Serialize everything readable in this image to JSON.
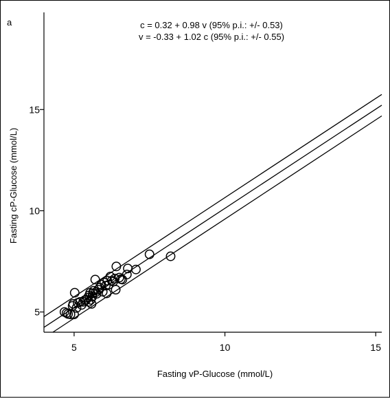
{
  "panel_label": "a",
  "chart_data": {
    "type": "scatter",
    "title": "",
    "xlabel": "Fasting vP-Glucose (mmol/L)",
    "ylabel": "Fasting cP-Glucose (mmol/L)",
    "xlim": [
      4.0,
      15.2
    ],
    "ylim": [
      4.0,
      19.8
    ],
    "xticks": [
      5,
      10,
      15
    ],
    "yticks": [
      5,
      10,
      15
    ],
    "grid": false,
    "annotations": [
      "c = 0.32 + 0.98 v (95% p.i.: +/- 0.53)",
      "v = -0.33 + 1.02 c (95% p.i.: +/- 0.55)"
    ],
    "regression": {
      "intercept": 0.32,
      "slope": 0.98,
      "pi_halfwidth": 0.53
    },
    "series": [
      {
        "points": [
          [
            4.68,
            5.0
          ],
          [
            4.75,
            4.95
          ],
          [
            4.8,
            4.9
          ],
          [
            4.88,
            4.88
          ],
          [
            4.95,
            5.3
          ],
          [
            4.97,
            5.4
          ],
          [
            5.0,
            4.88
          ],
          [
            5.02,
            5.95
          ],
          [
            5.08,
            5.2
          ],
          [
            5.12,
            5.45
          ],
          [
            5.2,
            5.5
          ],
          [
            5.25,
            5.35
          ],
          [
            5.3,
            5.5
          ],
          [
            5.35,
            5.58
          ],
          [
            5.4,
            5.6
          ],
          [
            5.45,
            5.7
          ],
          [
            5.48,
            5.5
          ],
          [
            5.5,
            5.82
          ],
          [
            5.53,
            5.95
          ],
          [
            5.55,
            5.6
          ],
          [
            5.58,
            5.4
          ],
          [
            5.6,
            5.75
          ],
          [
            5.62,
            5.92
          ],
          [
            5.65,
            6.05
          ],
          [
            5.7,
            6.6
          ],
          [
            5.72,
            5.98
          ],
          [
            5.75,
            5.9
          ],
          [
            5.8,
            6.1
          ],
          [
            5.85,
            6.2
          ],
          [
            5.9,
            6.35
          ],
          [
            5.95,
            6.0
          ],
          [
            6.0,
            6.45
          ],
          [
            6.05,
            6.3
          ],
          [
            6.08,
            5.92
          ],
          [
            6.1,
            6.55
          ],
          [
            6.15,
            6.35
          ],
          [
            6.2,
            6.75
          ],
          [
            6.25,
            6.55
          ],
          [
            6.3,
            6.5
          ],
          [
            6.35,
            6.65
          ],
          [
            6.38,
            6.1
          ],
          [
            6.4,
            7.25
          ],
          [
            6.5,
            6.7
          ],
          [
            6.55,
            6.62
          ],
          [
            6.6,
            6.6
          ],
          [
            6.75,
            6.85
          ],
          [
            6.78,
            7.15
          ],
          [
            7.05,
            7.1
          ],
          [
            7.5,
            7.85
          ],
          [
            8.2,
            7.75
          ]
        ]
      }
    ]
  }
}
